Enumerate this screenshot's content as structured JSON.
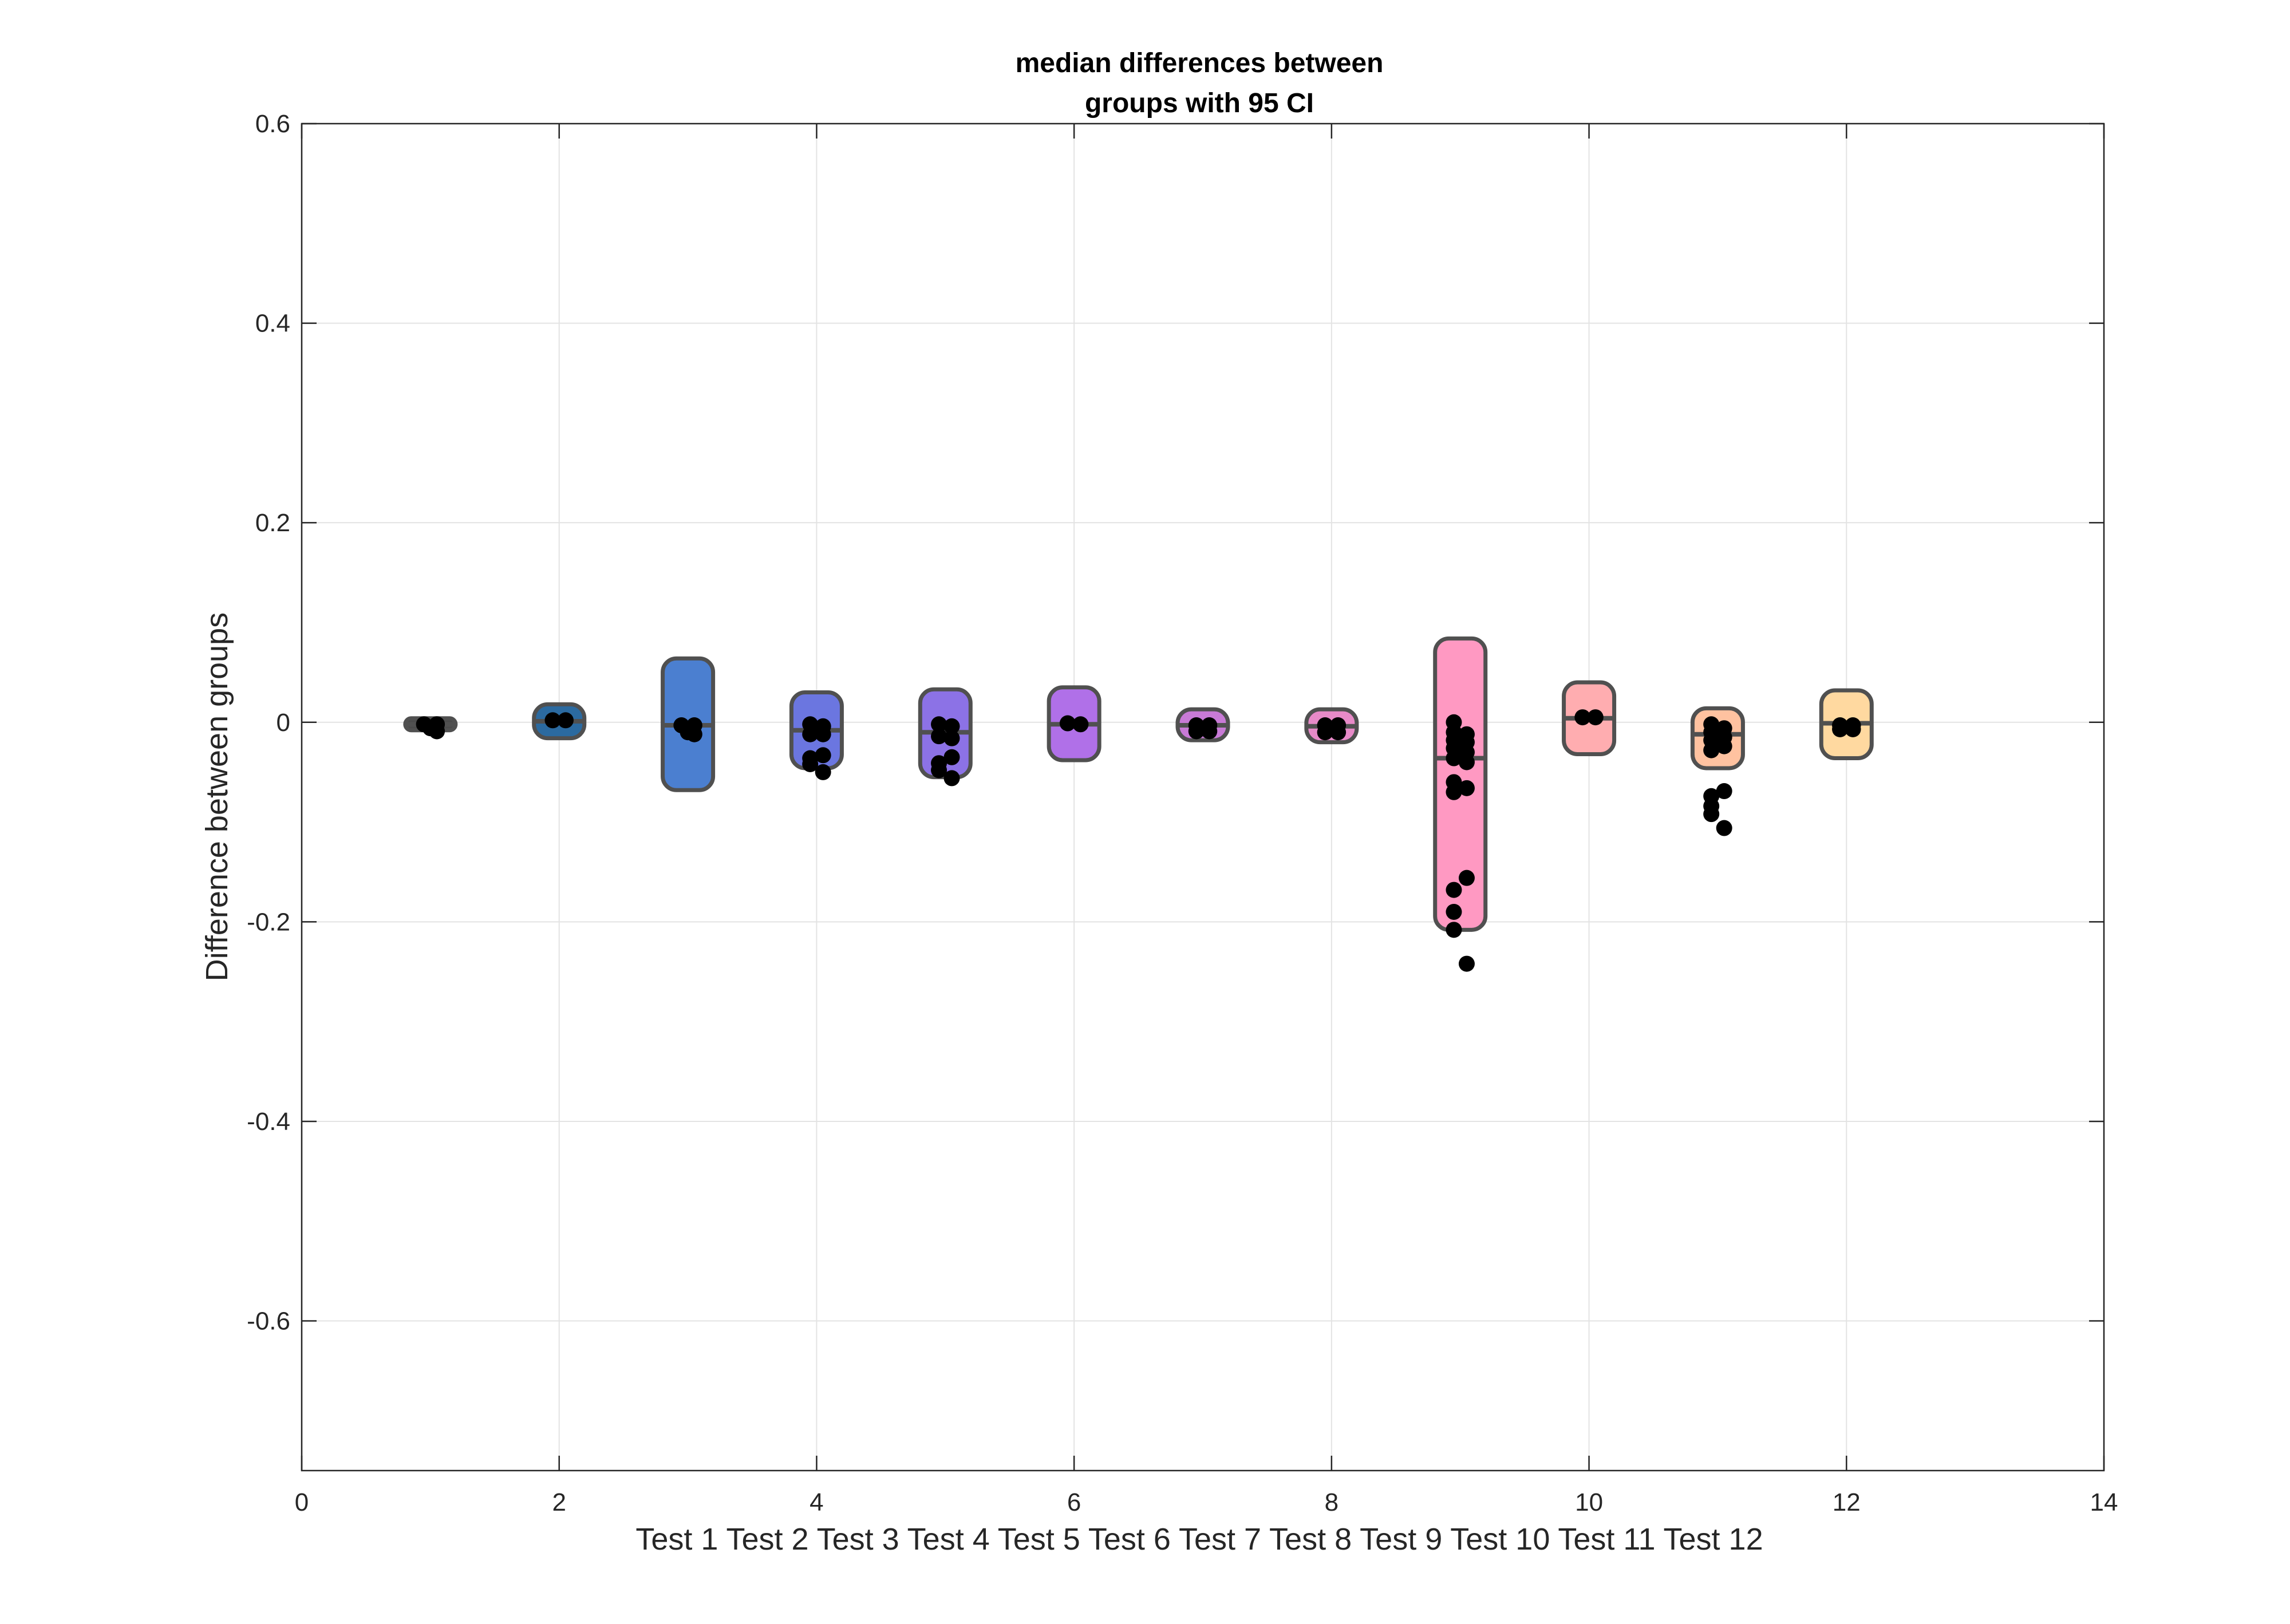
{
  "chart_data": {
    "type": "box",
    "title": [
      "median differences between",
      "groups with 95  CI"
    ],
    "xlabel": "Test 1 Test 2 Test 3 Test 4 Test 5 Test 6 Test 7 Test 8 Test 9 Test 10 Test 11 Test 12",
    "ylabel": "Difference between groups",
    "xlim": [
      0,
      14
    ],
    "ylim": [
      -0.75,
      0.6
    ],
    "xticks": [
      0,
      2,
      4,
      6,
      8,
      10,
      12,
      14
    ],
    "yticks": [
      -0.6,
      -0.4,
      -0.2,
      0,
      0.2,
      0.4,
      0.6
    ],
    "grid": true,
    "series": [
      {
        "x": 1,
        "low": -0.008,
        "high": 0.004,
        "median": -0.002,
        "color": "#4a4a4a",
        "points": [
          [
            0.95,
            -0.002
          ],
          [
            1.0,
            -0.006
          ],
          [
            1.05,
            -0.002
          ],
          [
            1.05,
            -0.009
          ]
        ]
      },
      {
        "x": 2,
        "low": -0.016,
        "high": 0.018,
        "median": 0.001,
        "color": "#2b6aa0",
        "points": [
          [
            1.95,
            0.002
          ],
          [
            2.05,
            0.002
          ]
        ]
      },
      {
        "x": 3,
        "low": -0.068,
        "high": 0.064,
        "median": -0.003,
        "color": "#4b7fd0",
        "points": [
          [
            2.95,
            -0.003
          ],
          [
            3.0,
            -0.01
          ],
          [
            3.05,
            -0.003
          ],
          [
            3.05,
            -0.012
          ]
        ]
      },
      {
        "x": 4,
        "low": -0.046,
        "high": 0.03,
        "median": -0.008,
        "color": "#6b76e0",
        "points": [
          [
            3.95,
            -0.002
          ],
          [
            3.95,
            -0.012
          ],
          [
            4.05,
            -0.004
          ],
          [
            4.05,
            -0.012
          ],
          [
            3.95,
            -0.036
          ],
          [
            3.95,
            -0.042
          ],
          [
            4.05,
            -0.033
          ],
          [
            4.05,
            -0.05
          ]
        ]
      },
      {
        "x": 5,
        "low": -0.055,
        "high": 0.033,
        "median": -0.01,
        "color": "#8c72e6",
        "points": [
          [
            4.95,
            -0.002
          ],
          [
            4.95,
            -0.014
          ],
          [
            5.05,
            -0.004
          ],
          [
            5.05,
            -0.016
          ],
          [
            4.95,
            -0.041
          ],
          [
            4.95,
            -0.048
          ],
          [
            5.05,
            -0.035
          ],
          [
            5.05,
            -0.056
          ]
        ]
      },
      {
        "x": 6,
        "low": -0.038,
        "high": 0.035,
        "median": -0.002,
        "color": "#b070e8",
        "points": [
          [
            5.95,
            -0.001
          ],
          [
            6.05,
            -0.002
          ]
        ]
      },
      {
        "x": 7,
        "low": -0.018,
        "high": 0.013,
        "median": -0.003,
        "color": "#c87ad6",
        "points": [
          [
            6.95,
            -0.003
          ],
          [
            7.05,
            -0.003
          ],
          [
            6.95,
            -0.009
          ],
          [
            7.05,
            -0.009
          ]
        ]
      },
      {
        "x": 8,
        "low": -0.02,
        "high": 0.013,
        "median": -0.004,
        "color": "#e78ac8",
        "points": [
          [
            7.95,
            -0.003
          ],
          [
            8.05,
            -0.003
          ],
          [
            7.95,
            -0.01
          ],
          [
            8.05,
            -0.01
          ]
        ]
      },
      {
        "x": 9,
        "low": -0.208,
        "high": 0.084,
        "median": -0.036,
        "color": "#ff99c2",
        "points": [
          [
            8.95,
            0.0
          ],
          [
            8.95,
            -0.01
          ],
          [
            8.95,
            -0.018
          ],
          [
            8.95,
            -0.026
          ],
          [
            8.95,
            -0.036
          ],
          [
            8.95,
            -0.06
          ],
          [
            8.95,
            -0.07
          ],
          [
            9.05,
            -0.012
          ],
          [
            9.05,
            -0.02
          ],
          [
            9.05,
            -0.03
          ],
          [
            9.05,
            -0.04
          ],
          [
            9.05,
            -0.066
          ],
          [
            8.95,
            -0.168
          ],
          [
            8.95,
            -0.19
          ],
          [
            8.95,
            -0.208
          ],
          [
            9.05,
            -0.156
          ],
          [
            9.05,
            -0.242
          ]
        ]
      },
      {
        "x": 10,
        "low": -0.032,
        "high": 0.04,
        "median": 0.004,
        "color": "#ffadb0",
        "points": [
          [
            9.95,
            0.005
          ],
          [
            10.05,
            0.005
          ]
        ]
      },
      {
        "x": 11,
        "low": -0.046,
        "high": 0.014,
        "median": -0.012,
        "color": "#ffc2a0",
        "points": [
          [
            10.95,
            -0.002
          ],
          [
            10.95,
            -0.01
          ],
          [
            10.95,
            -0.018
          ],
          [
            10.95,
            -0.028
          ],
          [
            11.05,
            -0.006
          ],
          [
            11.05,
            -0.015
          ],
          [
            11.05,
            -0.024
          ],
          [
            10.95,
            -0.074
          ],
          [
            10.95,
            -0.084
          ],
          [
            10.95,
            -0.092
          ],
          [
            11.05,
            -0.069
          ],
          [
            11.05,
            -0.106
          ]
        ]
      },
      {
        "x": 12,
        "low": -0.036,
        "high": 0.032,
        "median": -0.001,
        "color": "#ffd9a0",
        "points": [
          [
            11.95,
            -0.003
          ],
          [
            12.05,
            -0.003
          ],
          [
            11.95,
            -0.007
          ],
          [
            12.05,
            -0.007
          ]
        ]
      }
    ]
  }
}
